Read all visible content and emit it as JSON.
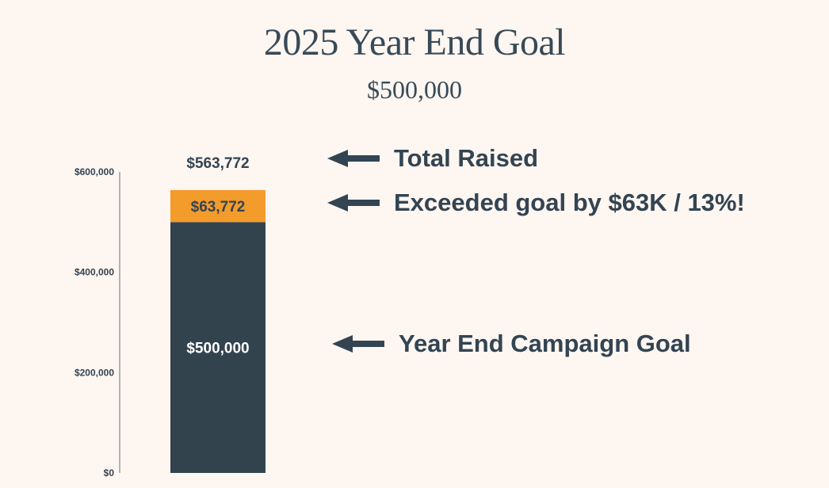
{
  "header": {
    "title": "2025 Year End Goal",
    "subtitle": "$500,000"
  },
  "annotations": [
    {
      "label": "Total Raised",
      "icon": "arrow-left-icon"
    },
    {
      "label": "Exceeded goal by $63K / 13%!",
      "icon": "arrow-left-icon"
    },
    {
      "label": "Year End Campaign Goal",
      "icon": "arrow-left-icon"
    }
  ],
  "colors": {
    "goal": "#33434e",
    "excess": "#f39b2b",
    "text_dark": "#334452",
    "axis": "#6f6f6f"
  },
  "chart_data": {
    "type": "bar",
    "stacked": true,
    "categories": [
      ""
    ],
    "series": [
      {
        "values": [
          500000
        ],
        "data_label": "$500,000",
        "color": "#33434e"
      },
      {
        "values": [
          63772
        ],
        "data_label": "$63,772",
        "color": "#f39b2b"
      }
    ],
    "total_label": "$563,772",
    "total": 563772,
    "ylim": [
      0,
      600000
    ],
    "yticks": [
      0,
      200000,
      400000,
      600000
    ],
    "ytick_labels": [
      "$0",
      "$200,000",
      "$400,000",
      "$600,000"
    ],
    "title": "2025 Year End Goal",
    "subtitle": "$500,000",
    "xlabel": "",
    "ylabel": "",
    "grid": false,
    "legend": "none"
  }
}
